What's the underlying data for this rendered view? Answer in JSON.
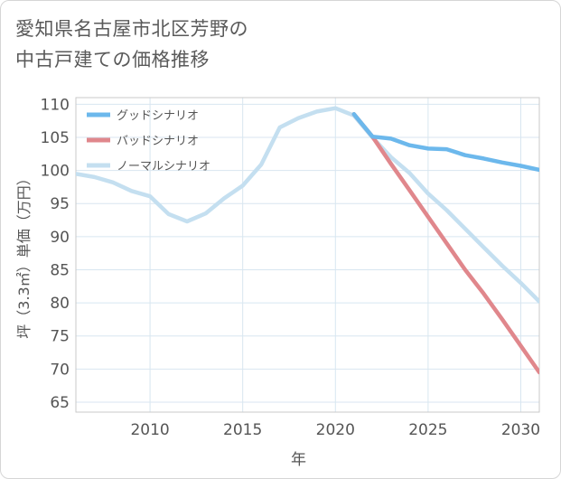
{
  "title": {
    "line1": "愛知県名古屋市北区芳野の",
    "line2": "中古戸建ての価格推移"
  },
  "chart_data": {
    "type": "line",
    "title": "愛知県名古屋市北区芳野の中古戸建ての価格推移",
    "xlabel": "年",
    "ylabel": "坪（3.3㎡）単価（万円）",
    "xlim": [
      2006,
      2031
    ],
    "ylim": [
      63.5,
      111
    ],
    "x_ticks": [
      2010,
      2015,
      2020,
      2025,
      2030
    ],
    "y_ticks": [
      65,
      70,
      75,
      80,
      85,
      90,
      95,
      100,
      105,
      110
    ],
    "grid": true,
    "legend_position": "top-left",
    "series": [
      {
        "name": "グッドシナリオ",
        "color": "#6cb8ec",
        "x": [
          2021,
          2022,
          2023,
          2024,
          2025,
          2026,
          2027,
          2028,
          2029,
          2030,
          2031
        ],
        "values": [
          108.5,
          105.1,
          104.8,
          103.8,
          103.3,
          103.2,
          102.3,
          101.8,
          101.2,
          100.7,
          100.1
        ]
      },
      {
        "name": "バッドシナリオ",
        "color": "#e0878c",
        "x": [
          2021,
          2022,
          2023,
          2024,
          2025,
          2026,
          2027,
          2028,
          2029,
          2030,
          2031
        ],
        "values": [
          108.5,
          105.1,
          101.0,
          97.0,
          93.0,
          89.0,
          85.0,
          81.4,
          77.5,
          73.5,
          69.5
        ]
      },
      {
        "name": "ノーマルシナリオ",
        "color": "#c4dff0",
        "x": [
          2006,
          2007,
          2008,
          2009,
          2010,
          2011,
          2012,
          2013,
          2014,
          2015,
          2016,
          2017,
          2018,
          2019,
          2020,
          2021,
          2022,
          2023,
          2024,
          2025,
          2026,
          2027,
          2028,
          2029,
          2030,
          2031
        ],
        "values": [
          99.5,
          99.0,
          98.2,
          96.9,
          96.1,
          93.4,
          92.3,
          93.5,
          95.8,
          97.7,
          100.9,
          106.5,
          107.9,
          108.9,
          109.4,
          108.3,
          105.0,
          102.0,
          99.6,
          96.5,
          94.0,
          91.2,
          88.4,
          85.6,
          83.0,
          80.2
        ]
      }
    ]
  }
}
